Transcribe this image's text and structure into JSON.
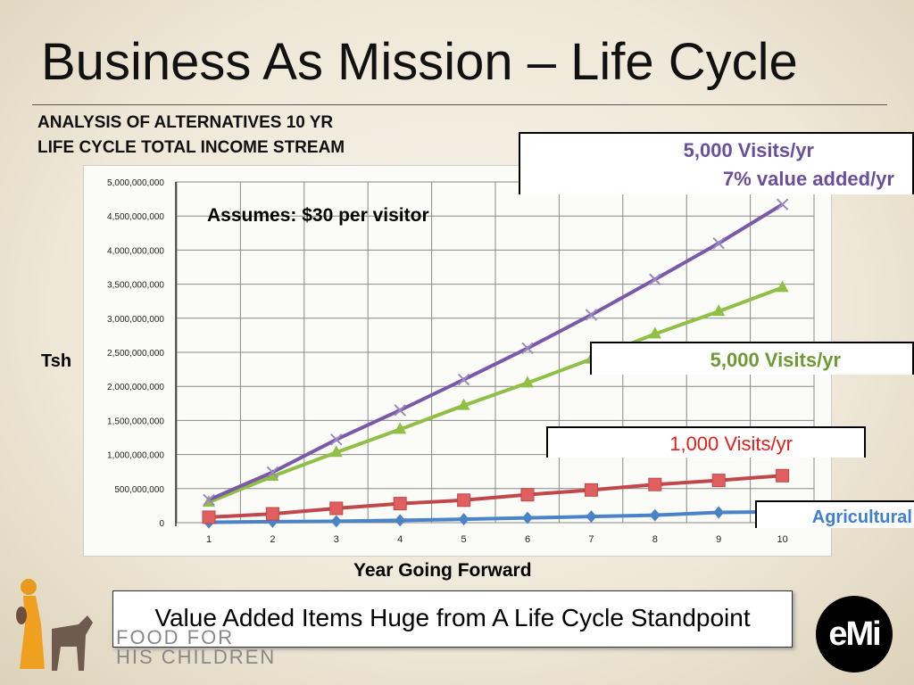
{
  "title": "Business As Mission – Life Cycle",
  "subtitle_line1": "ANALYSIS OF ALTERNATIVES 10 YR",
  "subtitle_line2": "LIFE CYCLE TOTAL INCOME STREAM",
  "assumption": "Assumes: $30 per visitor",
  "callouts": {
    "purple_line1": "5,000  Visits/yr",
    "purple_line2": "7%  value added/yr",
    "green": "5,000  Visits/yr",
    "red": "1,000  Visits/yr",
    "blue": "Agricultural"
  },
  "footer": {
    "message": "Value Added Items Huge from A Life Cycle Standpoint",
    "logo_text": "FOOD FOR HIS CHILDREN",
    "emi_logo": "eMi"
  },
  "chart_data": {
    "type": "line",
    "title": "",
    "xlabel": "Year Going Forward",
    "ylabel": "Tsh",
    "x": [
      1,
      2,
      3,
      4,
      5,
      6,
      7,
      8,
      9,
      10
    ],
    "ylim": [
      0,
      5000000000
    ],
    "yticks": [
      "0",
      "500,000,000",
      "1,000,000,000",
      "1,500,000,000",
      "2,000,000,000",
      "2,500,000,000",
      "3,000,000,000",
      "3,500,000,000",
      "4,000,000,000",
      "4,500,000,000",
      "5,000,000,000"
    ],
    "grid": true,
    "series": [
      {
        "name": "5,000 Visits/yr + 7% value added/yr",
        "color": "#7a5aa8",
        "marker": "x",
        "values": [
          335000000,
          740000000,
          1220000000,
          1650000000,
          2100000000,
          2560000000,
          3050000000,
          3570000000,
          4100000000,
          4670000000
        ]
      },
      {
        "name": "5,000 Visits/yr",
        "color": "#8fbf45",
        "marker": "triangle",
        "values": [
          300000000,
          680000000,
          1030000000,
          1370000000,
          1720000000,
          2050000000,
          2400000000,
          2770000000,
          3100000000,
          3450000000
        ]
      },
      {
        "name": "1,000 Visits/yr",
        "color": "#c0474a",
        "marker": "square",
        "values": [
          80000000,
          130000000,
          210000000,
          280000000,
          330000000,
          410000000,
          480000000,
          560000000,
          620000000,
          690000000
        ]
      },
      {
        "name": "Agricultural",
        "color": "#4a83c6",
        "marker": "diamond",
        "values": [
          5000000,
          15000000,
          20000000,
          35000000,
          50000000,
          70000000,
          90000000,
          110000000,
          150000000,
          160000000
        ]
      }
    ]
  }
}
